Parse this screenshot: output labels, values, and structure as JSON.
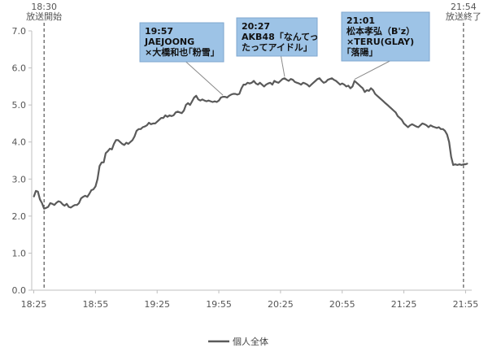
{
  "chart_data": {
    "type": "line",
    "series": [
      {
        "name": "個人全体",
        "color": "#5a5a5a",
        "points": [
          [
            "18:25",
            2.52
          ],
          [
            "18:26",
            2.68
          ],
          [
            "18:27",
            2.66
          ],
          [
            "18:28",
            2.45
          ],
          [
            "18:29",
            2.35
          ],
          [
            "18:30",
            2.2
          ],
          [
            "18:31",
            2.22
          ],
          [
            "18:32",
            2.25
          ],
          [
            "18:33",
            2.35
          ],
          [
            "18:34",
            2.33
          ],
          [
            "18:35",
            2.3
          ],
          [
            "18:36",
            2.36
          ],
          [
            "18:37",
            2.4
          ],
          [
            "18:38",
            2.38
          ],
          [
            "18:39",
            2.32
          ],
          [
            "18:40",
            2.28
          ],
          [
            "18:41",
            2.33
          ],
          [
            "18:42",
            2.25
          ],
          [
            "18:43",
            2.23
          ],
          [
            "18:44",
            2.27
          ],
          [
            "18:45",
            2.3
          ],
          [
            "18:46",
            2.3
          ],
          [
            "18:47",
            2.35
          ],
          [
            "18:48",
            2.48
          ],
          [
            "18:49",
            2.52
          ],
          [
            "18:50",
            2.55
          ],
          [
            "18:51",
            2.52
          ],
          [
            "18:52",
            2.6
          ],
          [
            "18:53",
            2.7
          ],
          [
            "18:54",
            2.72
          ],
          [
            "18:55",
            2.8
          ],
          [
            "18:56",
            3.0
          ],
          [
            "18:57",
            3.35
          ],
          [
            "18:58",
            3.45
          ],
          [
            "18:59",
            3.45
          ],
          [
            "19:00",
            3.7
          ],
          [
            "19:01",
            3.75
          ],
          [
            "19:02",
            3.82
          ],
          [
            "19:03",
            3.8
          ],
          [
            "19:04",
            3.95
          ],
          [
            "19:05",
            4.05
          ],
          [
            "19:06",
            4.05
          ],
          [
            "19:07",
            4.0
          ],
          [
            "19:08",
            3.95
          ],
          [
            "19:09",
            3.92
          ],
          [
            "19:10",
            3.98
          ],
          [
            "19:11",
            3.95
          ],
          [
            "19:12",
            4.0
          ],
          [
            "19:13",
            4.05
          ],
          [
            "19:14",
            4.15
          ],
          [
            "19:15",
            4.3
          ],
          [
            "19:16",
            4.35
          ],
          [
            "19:17",
            4.35
          ],
          [
            "19:18",
            4.4
          ],
          [
            "19:19",
            4.42
          ],
          [
            "19:20",
            4.45
          ],
          [
            "19:21",
            4.52
          ],
          [
            "19:22",
            4.48
          ],
          [
            "19:23",
            4.5
          ],
          [
            "19:24",
            4.5
          ],
          [
            "19:25",
            4.55
          ],
          [
            "19:26",
            4.6
          ],
          [
            "19:27",
            4.65
          ],
          [
            "19:28",
            4.65
          ],
          [
            "19:29",
            4.72
          ],
          [
            "19:30",
            4.68
          ],
          [
            "19:31",
            4.72
          ],
          [
            "19:32",
            4.7
          ],
          [
            "19:33",
            4.72
          ],
          [
            "19:34",
            4.8
          ],
          [
            "19:35",
            4.82
          ],
          [
            "19:36",
            4.8
          ],
          [
            "19:37",
            4.78
          ],
          [
            "19:38",
            4.85
          ],
          [
            "19:39",
            5.0
          ],
          [
            "19:40",
            5.05
          ],
          [
            "19:41",
            5.0
          ],
          [
            "19:42",
            5.1
          ],
          [
            "19:43",
            5.2
          ],
          [
            "19:44",
            5.25
          ],
          [
            "19:45",
            5.15
          ],
          [
            "19:46",
            5.12
          ],
          [
            "19:47",
            5.15
          ],
          [
            "19:48",
            5.12
          ],
          [
            "19:49",
            5.1
          ],
          [
            "19:50",
            5.12
          ],
          [
            "19:51",
            5.1
          ],
          [
            "19:52",
            5.08
          ],
          [
            "19:53",
            5.1
          ],
          [
            "19:54",
            5.08
          ],
          [
            "19:55",
            5.12
          ],
          [
            "19:56",
            5.2
          ],
          [
            "19:57",
            5.22
          ],
          [
            "19:58",
            5.22
          ],
          [
            "19:59",
            5.2
          ],
          [
            "20:00",
            5.25
          ],
          [
            "20:01",
            5.28
          ],
          [
            "20:02",
            5.3
          ],
          [
            "20:03",
            5.3
          ],
          [
            "20:04",
            5.28
          ],
          [
            "20:05",
            5.3
          ],
          [
            "20:06",
            5.45
          ],
          [
            "20:07",
            5.55
          ],
          [
            "20:08",
            5.55
          ],
          [
            "20:09",
            5.6
          ],
          [
            "20:10",
            5.58
          ],
          [
            "20:11",
            5.6
          ],
          [
            "20:12",
            5.65
          ],
          [
            "20:13",
            5.58
          ],
          [
            "20:14",
            5.55
          ],
          [
            "20:15",
            5.6
          ],
          [
            "20:16",
            5.55
          ],
          [
            "20:17",
            5.5
          ],
          [
            "20:18",
            5.55
          ],
          [
            "20:19",
            5.58
          ],
          [
            "20:20",
            5.6
          ],
          [
            "20:21",
            5.55
          ],
          [
            "20:22",
            5.65
          ],
          [
            "20:23",
            5.62
          ],
          [
            "20:24",
            5.6
          ],
          [
            "20:25",
            5.65
          ],
          [
            "20:26",
            5.7
          ],
          [
            "20:27",
            5.72
          ],
          [
            "20:28",
            5.68
          ],
          [
            "20:29",
            5.65
          ],
          [
            "20:30",
            5.7
          ],
          [
            "20:31",
            5.68
          ],
          [
            "20:32",
            5.62
          ],
          [
            "20:33",
            5.6
          ],
          [
            "20:34",
            5.58
          ],
          [
            "20:35",
            5.55
          ],
          [
            "20:36",
            5.6
          ],
          [
            "20:37",
            5.58
          ],
          [
            "20:38",
            5.55
          ],
          [
            "20:39",
            5.5
          ],
          [
            "20:40",
            5.55
          ],
          [
            "20:41",
            5.6
          ],
          [
            "20:42",
            5.65
          ],
          [
            "20:43",
            5.7
          ],
          [
            "20:44",
            5.72
          ],
          [
            "20:45",
            5.65
          ],
          [
            "20:46",
            5.6
          ],
          [
            "20:47",
            5.62
          ],
          [
            "20:48",
            5.68
          ],
          [
            "20:49",
            5.7
          ],
          [
            "20:50",
            5.72
          ],
          [
            "20:51",
            5.68
          ],
          [
            "20:52",
            5.65
          ],
          [
            "20:53",
            5.6
          ],
          [
            "20:54",
            5.55
          ],
          [
            "20:55",
            5.58
          ],
          [
            "20:56",
            5.55
          ],
          [
            "20:57",
            5.5
          ],
          [
            "20:58",
            5.52
          ],
          [
            "20:59",
            5.45
          ],
          [
            "21:00",
            5.5
          ],
          [
            "21:01",
            5.65
          ],
          [
            "21:02",
            5.6
          ],
          [
            "21:03",
            5.55
          ],
          [
            "21:04",
            5.5
          ],
          [
            "21:05",
            5.45
          ],
          [
            "21:06",
            5.35
          ],
          [
            "21:07",
            5.4
          ],
          [
            "21:08",
            5.38
          ],
          [
            "21:09",
            5.45
          ],
          [
            "21:10",
            5.4
          ],
          [
            "21:11",
            5.3
          ],
          [
            "21:12",
            5.25
          ],
          [
            "21:13",
            5.2
          ],
          [
            "21:14",
            5.15
          ],
          [
            "21:15",
            5.1
          ],
          [
            "21:16",
            5.05
          ],
          [
            "21:17",
            5.0
          ],
          [
            "21:18",
            4.95
          ],
          [
            "21:19",
            4.9
          ],
          [
            "21:20",
            4.85
          ],
          [
            "21:21",
            4.8
          ],
          [
            "21:22",
            4.7
          ],
          [
            "21:23",
            4.65
          ],
          [
            "21:24",
            4.6
          ],
          [
            "21:25",
            4.5
          ],
          [
            "21:26",
            4.45
          ],
          [
            "21:27",
            4.4
          ],
          [
            "21:28",
            4.45
          ],
          [
            "21:29",
            4.48
          ],
          [
            "21:30",
            4.45
          ],
          [
            "21:31",
            4.42
          ],
          [
            "21:32",
            4.4
          ],
          [
            "21:33",
            4.45
          ],
          [
            "21:34",
            4.5
          ],
          [
            "21:35",
            4.48
          ],
          [
            "21:36",
            4.45
          ],
          [
            "21:37",
            4.4
          ],
          [
            "21:38",
            4.45
          ],
          [
            "21:39",
            4.42
          ],
          [
            "21:40",
            4.4
          ],
          [
            "21:41",
            4.38
          ],
          [
            "21:42",
            4.4
          ],
          [
            "21:43",
            4.35
          ],
          [
            "21:44",
            4.35
          ],
          [
            "21:45",
            4.3
          ],
          [
            "21:46",
            4.2
          ],
          [
            "21:47",
            4.0
          ],
          [
            "21:48",
            3.6
          ],
          [
            "21:49",
            3.38
          ],
          [
            "21:50",
            3.4
          ],
          [
            "21:51",
            3.38
          ],
          [
            "21:52",
            3.4
          ],
          [
            "21:53",
            3.38
          ],
          [
            "21:54",
            3.4
          ],
          [
            "21:55",
            3.4
          ],
          [
            "21:56",
            3.42
          ]
        ]
      }
    ],
    "x_range": [
      "18:24",
      "21:58"
    ],
    "x_ticks": [
      "18:25",
      "18:55",
      "19:25",
      "19:55",
      "20:25",
      "20:55",
      "21:25",
      "21:55"
    ],
    "ylim": [
      0,
      7
    ],
    "y_ticks": [
      "0.0",
      "1.0",
      "2.0",
      "3.0",
      "4.0",
      "5.0",
      "6.0",
      "7.0"
    ],
    "grid": false,
    "legend_position": "bottom-center",
    "markers": [
      {
        "time": "18:30",
        "lines": [
          "18:30",
          "放送開始"
        ]
      },
      {
        "time": "21:54",
        "lines": [
          "21:54",
          "放送終了"
        ]
      }
    ],
    "annotations": [
      {
        "time": "19:57",
        "value": 5.22,
        "lines": [
          "19:57",
          "JAEJOONG",
          "×大橋和也｢粉雪｣"
        ]
      },
      {
        "time": "20:27",
        "value": 5.72,
        "lines": [
          "20:27",
          "AKB48「なんてっ",
          "たってアイドル」"
        ]
      },
      {
        "time": "21:01",
        "value": 5.65,
        "lines": [
          "21:01",
          "松本孝弘（B'z）",
          "×TERU(GLAY)",
          "｢落陽｣"
        ]
      }
    ],
    "annotation_style": {
      "fill": "#9dc3e6",
      "border": "#7fa7cf"
    }
  }
}
